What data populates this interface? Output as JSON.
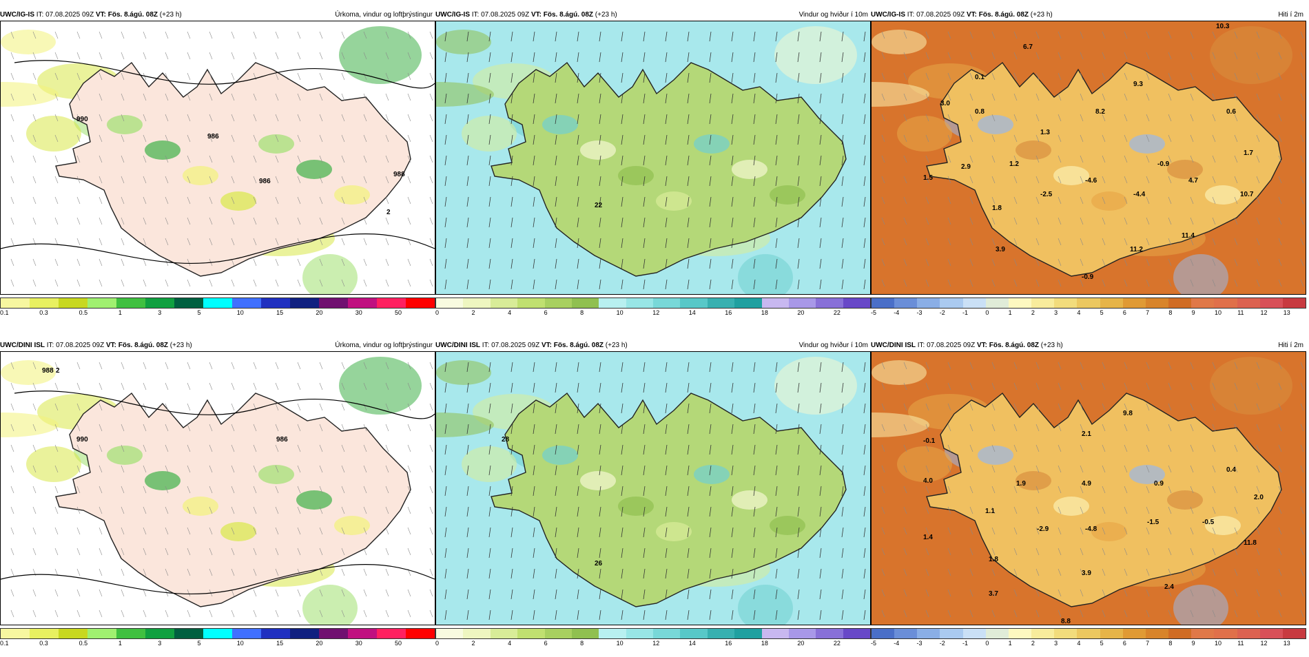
{
  "panels": [
    {
      "model": "UWC/IG-IS",
      "it": "IT: 07.08.2025 09Z",
      "vt": "VT: Fös. 8.ágú. 08Z",
      "lead": "(+23 h)",
      "title": "Úrkoma, vindur og loftþrýstingur",
      "type": "precip",
      "colorbar": {
        "colors": [
          "#f7f7a0",
          "#e8f060",
          "#c8d820",
          "#a0f070",
          "#40c040",
          "#10a040",
          "#006040",
          "#00ffff",
          "#4070ff",
          "#2030c0",
          "#102080",
          "#701070",
          "#c01080",
          "#ff2060",
          "#ff0000"
        ],
        "ticks": [
          "0.1",
          "0.3",
          "0.5",
          "1",
          "3",
          "5",
          "10",
          "15",
          "20",
          "30",
          "50"
        ]
      },
      "labels": [
        "986",
        "990",
        "988",
        "986",
        "2"
      ]
    },
    {
      "model": "UWC/IG-IS",
      "it": "IT: 07.08.2025 09Z",
      "vt": "VT: Fös. 8.ágú. 08Z",
      "lead": "(+23 h)",
      "title": "Vindur og hviður í 10m",
      "type": "wind",
      "colorbar": {
        "colors": [
          "#f8fbe0",
          "#eef6c0",
          "#d8ec98",
          "#c0e070",
          "#a8d060",
          "#90c050",
          "#b8f0f0",
          "#98e6e6",
          "#78d8d8",
          "#58c8c8",
          "#38b0b0",
          "#20a0a0",
          "#c8b8f0",
          "#a898e8",
          "#8870d8",
          "#6848c8"
        ],
        "ticks": [
          "0",
          "2",
          "4",
          "6",
          "8",
          "10",
          "12",
          "14",
          "16",
          "18",
          "20",
          "22"
        ]
      },
      "labels": [
        "22"
      ]
    },
    {
      "model": "UWC/IG-IS",
      "it": "IT: 07.08.2025 09Z",
      "vt": "VT: Fös. 8.ágú. 08Z",
      "lead": "(+23 h)",
      "title": "Hiti í 2m",
      "type": "temp",
      "colorbar": {
        "colors": [
          "#4a6fc8",
          "#6a8ed8",
          "#8aaee6",
          "#aacaf0",
          "#cae0f6",
          "#e0ecd8",
          "#fdf8c0",
          "#f8ec9c",
          "#f2dc7c",
          "#ecc860",
          "#e6b448",
          "#e09a34",
          "#d8842a",
          "#d06c24",
          "#e07848",
          "#e0704a",
          "#dc6250",
          "#d85058",
          "#c83a40"
        ],
        "ticks": [
          "-5",
          "-4",
          "-3",
          "-2",
          "-1",
          "0",
          "1",
          "2",
          "3",
          "4",
          "5",
          "6",
          "7",
          "8",
          "9",
          "10",
          "11",
          "12",
          "13"
        ]
      },
      "labels": [
        "6.7",
        "10.3",
        "0.1",
        "3.0",
        "0.8",
        "9.3",
        "8.2",
        "1.3",
        "0.6",
        "1.2",
        "-0.9",
        "1.7",
        "1.5",
        "2.9",
        "-2.5",
        "-4.6",
        "4.7",
        "-4.4",
        "10.7",
        "1.8",
        "11.4",
        "3.9",
        "11.2",
        "-0.9"
      ]
    },
    {
      "model": "UWC/DINI ISL",
      "it": "IT: 07.08.2025 09Z",
      "vt": "VT: Fös. 8.ágú. 08Z",
      "lead": "(+23 h)",
      "title": "Úrkoma, vindur og loftþrýstingur",
      "type": "precip",
      "colorbar": {
        "colors": [
          "#f7f7a0",
          "#e8f060",
          "#c8d820",
          "#a0f070",
          "#40c040",
          "#10a040",
          "#006040",
          "#00ffff",
          "#4070ff",
          "#2030c0",
          "#102080",
          "#701070",
          "#c01080",
          "#ff2060",
          "#ff0000"
        ],
        "ticks": [
          "0.1",
          "0.3",
          "0.5",
          "1",
          "3",
          "5",
          "10",
          "15",
          "20",
          "30",
          "50"
        ]
      },
      "labels": [
        "986",
        "990",
        "988",
        "2"
      ]
    },
    {
      "model": "UWC/DINI ISL",
      "it": "IT: 07.08.2025 09Z",
      "vt": "VT: Fös. 8.ágú. 08Z",
      "lead": "(+23 h)",
      "title": "Vindur og hviður í 10m",
      "type": "wind",
      "colorbar": {
        "colors": [
          "#f8fbe0",
          "#eef6c0",
          "#d8ec98",
          "#c0e070",
          "#a8d060",
          "#90c050",
          "#b8f0f0",
          "#98e6e6",
          "#78d8d8",
          "#58c8c8",
          "#38b0b0",
          "#20a0a0",
          "#c8b8f0",
          "#a898e8",
          "#8870d8",
          "#6848c8"
        ],
        "ticks": [
          "0",
          "2",
          "4",
          "6",
          "8",
          "10",
          "12",
          "14",
          "16",
          "18",
          "20",
          "22"
        ]
      },
      "labels": [
        "28",
        "26"
      ]
    },
    {
      "model": "UWC/DINI ISL",
      "it": "IT: 07.08.2025 09Z",
      "vt": "VT: Fös. 8.ágú. 08Z",
      "lead": "(+23 h)",
      "title": "Hiti í 2m",
      "type": "temp",
      "colorbar": {
        "colors": [
          "#4a6fc8",
          "#6a8ed8",
          "#8aaee6",
          "#aacaf0",
          "#cae0f6",
          "#e0ecd8",
          "#fdf8c0",
          "#f8ec9c",
          "#f2dc7c",
          "#ecc860",
          "#e6b448",
          "#e09a34",
          "#d8842a",
          "#d06c24",
          "#e07848",
          "#e0704a",
          "#dc6250",
          "#d85058",
          "#c83a40"
        ],
        "ticks": [
          "-5",
          "-4",
          "-3",
          "-2",
          "-1",
          "0",
          "1",
          "2",
          "3",
          "4",
          "5",
          "6",
          "7",
          "8",
          "9",
          "10",
          "11",
          "12",
          "13"
        ]
      },
      "labels": [
        "-0.1",
        "4.0",
        "1.1",
        "2.1",
        "9.8",
        "1.9",
        "4.9",
        "0.9",
        "0.4",
        "2.0",
        "1.4",
        "-2.9",
        "-4.8",
        "-1.5",
        "-0.5",
        "11.8",
        "1.8",
        "3.9",
        "3.7",
        "8.8",
        "2.4"
      ]
    }
  ]
}
